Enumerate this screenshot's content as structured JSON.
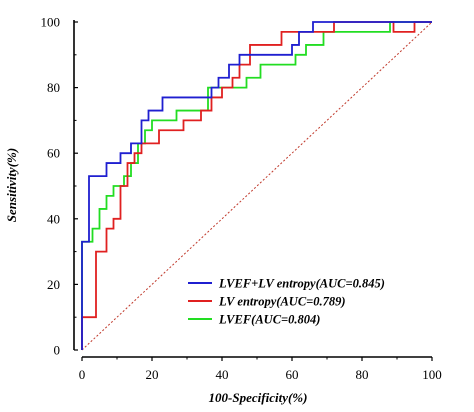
{
  "chart_data": {
    "type": "line",
    "title": "",
    "xlabel": "100-Specificity(%)",
    "ylabel": "Sensitivity(%)",
    "xlim": [
      0,
      100
    ],
    "ylim": [
      0,
      100
    ],
    "x_ticks": [
      "0",
      "20",
      "40",
      "60",
      "80",
      "100"
    ],
    "y_ticks": [
      "0",
      "20",
      "40",
      "60",
      "80",
      "100"
    ],
    "grid": false,
    "legend_position": "bottom-right",
    "reference_line": {
      "points": [
        [
          0,
          0
        ],
        [
          100,
          100
        ]
      ],
      "color": "#c0392b",
      "style": "dotted"
    },
    "series": [
      {
        "name": "LVEF+LV entropy(AUC=0.845)",
        "color": "#1f1fd0",
        "points": [
          [
            0,
            0
          ],
          [
            0,
            33
          ],
          [
            2,
            33
          ],
          [
            2,
            53
          ],
          [
            7,
            53
          ],
          [
            7,
            57
          ],
          [
            11,
            57
          ],
          [
            11,
            60
          ],
          [
            14,
            60
          ],
          [
            14,
            63
          ],
          [
            17,
            63
          ],
          [
            17,
            70
          ],
          [
            19,
            70
          ],
          [
            19,
            73
          ],
          [
            23,
            73
          ],
          [
            23,
            77
          ],
          [
            37,
            77
          ],
          [
            37,
            80
          ],
          [
            39,
            80
          ],
          [
            39,
            83
          ],
          [
            42,
            83
          ],
          [
            42,
            87
          ],
          [
            45,
            87
          ],
          [
            45,
            90
          ],
          [
            60,
            90
          ],
          [
            60,
            93
          ],
          [
            62,
            93
          ],
          [
            62,
            97
          ],
          [
            66,
            97
          ],
          [
            66,
            100
          ],
          [
            100,
            100
          ]
        ]
      },
      {
        "name": "LV entropy(AUC=0.789)",
        "color": "#e02020",
        "points": [
          [
            0,
            0
          ],
          [
            0,
            10
          ],
          [
            4,
            10
          ],
          [
            4,
            30
          ],
          [
            7,
            30
          ],
          [
            7,
            37
          ],
          [
            9,
            37
          ],
          [
            9,
            40
          ],
          [
            11,
            40
          ],
          [
            11,
            50
          ],
          [
            13,
            50
          ],
          [
            13,
            57
          ],
          [
            15,
            57
          ],
          [
            15,
            60
          ],
          [
            17,
            60
          ],
          [
            17,
            63
          ],
          [
            22,
            63
          ],
          [
            22,
            67
          ],
          [
            29,
            67
          ],
          [
            29,
            70
          ],
          [
            34,
            70
          ],
          [
            34,
            73
          ],
          [
            37,
            73
          ],
          [
            37,
            77
          ],
          [
            40,
            77
          ],
          [
            40,
            80
          ],
          [
            43,
            80
          ],
          [
            43,
            83
          ],
          [
            45,
            83
          ],
          [
            45,
            87
          ],
          [
            48,
            87
          ],
          [
            48,
            93
          ],
          [
            57,
            93
          ],
          [
            57,
            97
          ],
          [
            72,
            97
          ],
          [
            72,
            100
          ],
          [
            89,
            100
          ],
          [
            89,
            97
          ],
          [
            95,
            97
          ],
          [
            95,
            100
          ],
          [
            100,
            100
          ]
        ]
      },
      {
        "name": "LVEF(AUC=0.804)",
        "color": "#22dd22",
        "points": [
          [
            0,
            0
          ],
          [
            0,
            33
          ],
          [
            3,
            33
          ],
          [
            3,
            37
          ],
          [
            5,
            37
          ],
          [
            5,
            43
          ],
          [
            7,
            43
          ],
          [
            7,
            47
          ],
          [
            9,
            47
          ],
          [
            9,
            50
          ],
          [
            12,
            50
          ],
          [
            12,
            53
          ],
          [
            14,
            53
          ],
          [
            14,
            57
          ],
          [
            16,
            57
          ],
          [
            16,
            63
          ],
          [
            18,
            63
          ],
          [
            18,
            67
          ],
          [
            20,
            67
          ],
          [
            20,
            70
          ],
          [
            27,
            70
          ],
          [
            27,
            73
          ],
          [
            36,
            73
          ],
          [
            36,
            80
          ],
          [
            47,
            80
          ],
          [
            47,
            83
          ],
          [
            51,
            83
          ],
          [
            51,
            87
          ],
          [
            61,
            87
          ],
          [
            61,
            90
          ],
          [
            64,
            90
          ],
          [
            64,
            93
          ],
          [
            69,
            93
          ],
          [
            69,
            97
          ],
          [
            88,
            97
          ],
          [
            88,
            100
          ],
          [
            100,
            100
          ]
        ]
      }
    ]
  }
}
